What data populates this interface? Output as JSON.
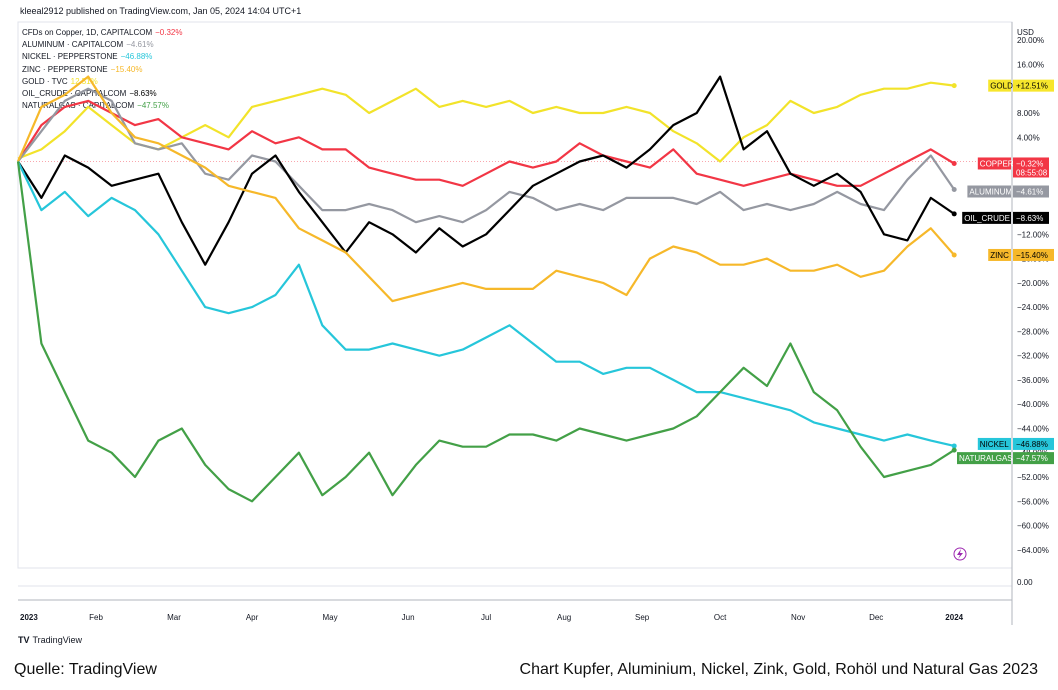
{
  "header": "kleeal2912 published on TradingView.com, Jan 05, 2024 14:04 UTC+1",
  "legend": [
    {
      "name": "CFDs on Copper, 1D, CAPITALCOM",
      "change": "−0.32%",
      "color": "#f23645"
    },
    {
      "name": "ALUMINUM · CAPITALCOM",
      "change": "−4.61%",
      "color": "#9598a1"
    },
    {
      "name": "NICKEL · PEPPERSTONE",
      "change": "−46.88%",
      "color": "#26c6da"
    },
    {
      "name": "ZINC · PEPPERSTONE",
      "change": "−15.40%",
      "color": "#f6b82a"
    },
    {
      "name": "GOLD · TVC",
      "change": "12.51%",
      "color": "#f2e32a"
    },
    {
      "name": "OIL_CRUDE · CAPITALCOM",
      "change": "−8.63%",
      "color": "#000000"
    },
    {
      "name": "NATURALGAS · CAPITALCOM",
      "change": "−47.57%",
      "color": "#43a047"
    }
  ],
  "price_labels": [
    {
      "name": "GOLD",
      "value": "+12.51%",
      "bg": "#f7e62c",
      "fg": "#000000"
    },
    {
      "name": "COPPER",
      "value": "−0.32%",
      "time": "08:55:08",
      "bg": "#f23645",
      "fg": "#ffffff"
    },
    {
      "name": "ALUMINUM",
      "value": "−4.61%",
      "bg": "#9598a1",
      "fg": "#ffffff"
    },
    {
      "name": "OIL_CRUDE",
      "value": "−8.63%",
      "bg": "#000000",
      "fg": "#ffffff"
    },
    {
      "name": "ZINC",
      "value": "−15.40%",
      "bg": "#f6b82a",
      "fg": "#000000"
    },
    {
      "name": "NICKEL",
      "value": "−46.88%",
      "bg": "#26c6da",
      "fg": "#000000"
    },
    {
      "name": "NATURALGAS",
      "value": "−47.57%",
      "bg": "#43a047",
      "fg": "#ffffff"
    }
  ],
  "tv_logo": "TradingView",
  "caption_left": "Quelle: TradingView",
  "caption_right": "Chart Kupfer, Aluminium, Nickel, Zink, Gold, Rohöl und Natural Gas 2023",
  "chart_data": {
    "type": "line",
    "currency_label": "USD",
    "y_unit": "percent change",
    "y_ticks": [
      20,
      16,
      12,
      8,
      4,
      0,
      -4,
      -8,
      -12,
      -16,
      -20,
      -24,
      -28,
      -32,
      -36,
      -40,
      -44,
      -48,
      -52,
      -56,
      -60,
      -64
    ],
    "y_tick_labels": [
      "20.00%",
      "16.00%",
      "12.00%",
      "8.00%",
      "4.00%",
      "",
      "",
      "",
      "−12.00%",
      "−16.00%",
      "−20.00%",
      "−24.00%",
      "−28.00%",
      "−32.00%",
      "−36.00%",
      "−40.00%",
      "−44.00%",
      "−48.00%",
      "−52.00%",
      "−56.00%",
      "−60.00%",
      "−64.00%"
    ],
    "ylim": [
      -67,
      23
    ],
    "pane2_label": "0.00",
    "x_ticks": [
      {
        "label": "2023",
        "x": 0
      },
      {
        "label": "Feb",
        "x": 1
      },
      {
        "label": "Mar",
        "x": 2
      },
      {
        "label": "Apr",
        "x": 3
      },
      {
        "label": "May",
        "x": 4
      },
      {
        "label": "Jun",
        "x": 5
      },
      {
        "label": "Jul",
        "x": 6
      },
      {
        "label": "Aug",
        "x": 7
      },
      {
        "label": "Sep",
        "x": 8
      },
      {
        "label": "Oct",
        "x": 9
      },
      {
        "label": "Nov",
        "x": 10
      },
      {
        "label": "Dec",
        "x": 11
      },
      {
        "label": "2024",
        "x": 12
      }
    ],
    "x_unit": "months since Jan 2023",
    "xlim": [
      0,
      12.1
    ],
    "series": [
      {
        "name": "GOLD",
        "color": "#f2e32a",
        "x": [
          0,
          0.3,
          0.6,
          0.9,
          1.2,
          1.5,
          1.8,
          2.1,
          2.4,
          2.7,
          3.0,
          3.3,
          3.6,
          3.9,
          4.2,
          4.5,
          4.8,
          5.1,
          5.4,
          5.7,
          6.0,
          6.3,
          6.6,
          6.9,
          7.2,
          7.5,
          7.8,
          8.1,
          8.4,
          8.7,
          9.0,
          9.3,
          9.6,
          9.9,
          10.2,
          10.5,
          10.8,
          11.1,
          11.4,
          11.7,
          12.0
        ],
        "values": [
          0.5,
          2,
          5,
          9,
          6,
          3,
          2,
          4,
          6,
          4,
          9,
          10,
          11,
          12,
          11,
          8,
          10,
          12,
          9,
          10,
          9,
          10,
          8,
          9,
          8,
          8,
          9,
          8,
          5,
          3,
          0,
          4,
          6,
          10,
          8,
          9,
          11,
          12,
          12,
          13,
          12.51
        ]
      },
      {
        "name": "COPPER",
        "color": "#f23645",
        "x": [
          0,
          0.3,
          0.6,
          0.9,
          1.2,
          1.5,
          1.8,
          2.1,
          2.4,
          2.7,
          3.0,
          3.3,
          3.6,
          3.9,
          4.2,
          4.5,
          4.8,
          5.1,
          5.4,
          5.7,
          6.0,
          6.3,
          6.6,
          6.9,
          7.2,
          7.5,
          7.8,
          8.1,
          8.4,
          8.7,
          9.0,
          9.3,
          9.6,
          9.9,
          10.2,
          10.5,
          10.8,
          11.1,
          11.4,
          11.7,
          12.0
        ],
        "values": [
          0,
          6,
          9,
          10,
          8,
          6,
          7,
          4,
          3,
          2,
          5,
          3,
          4,
          2,
          2,
          -1,
          -2,
          -3,
          -3,
          -4,
          -2,
          0,
          -1,
          0,
          3,
          1,
          0,
          -1,
          2,
          -2,
          -3,
          -4,
          -3,
          -2,
          -3,
          -4,
          -4,
          -2,
          0,
          2,
          -0.32
        ]
      },
      {
        "name": "ALUMINUM",
        "color": "#9598a1",
        "x": [
          0,
          0.3,
          0.6,
          0.9,
          1.2,
          1.5,
          1.8,
          2.1,
          2.4,
          2.7,
          3.0,
          3.3,
          3.6,
          3.9,
          4.2,
          4.5,
          4.8,
          5.1,
          5.4,
          5.7,
          6.0,
          6.3,
          6.6,
          6.9,
          7.2,
          7.5,
          7.8,
          8.1,
          8.4,
          8.7,
          9.0,
          9.3,
          9.6,
          9.9,
          10.2,
          10.5,
          10.8,
          11.1,
          11.4,
          11.7,
          12.0
        ],
        "values": [
          0,
          5,
          10,
          12,
          10,
          3,
          2,
          3,
          -2,
          -3,
          1,
          0,
          -4,
          -8,
          -8,
          -7,
          -8,
          -10,
          -9,
          -10,
          -8,
          -5,
          -6,
          -8,
          -7,
          -8,
          -6,
          -6,
          -6,
          -7,
          -5,
          -8,
          -7,
          -8,
          -7,
          -5,
          -7,
          -8,
          -3,
          1,
          -4.61
        ]
      },
      {
        "name": "OIL_CRUDE",
        "color": "#000000",
        "x": [
          0,
          0.3,
          0.6,
          0.9,
          1.2,
          1.5,
          1.8,
          2.1,
          2.4,
          2.7,
          3.0,
          3.3,
          3.6,
          3.9,
          4.2,
          4.5,
          4.8,
          5.1,
          5.4,
          5.7,
          6.0,
          6.3,
          6.6,
          6.9,
          7.2,
          7.5,
          7.8,
          8.1,
          8.4,
          8.7,
          9.0,
          9.3,
          9.6,
          9.9,
          10.2,
          10.5,
          10.8,
          11.1,
          11.4,
          11.7,
          12.0
        ],
        "values": [
          0,
          -6,
          1,
          -1,
          -4,
          -3,
          -2,
          -10,
          -17,
          -10,
          -2,
          1,
          -5,
          -10,
          -15,
          -10,
          -12,
          -15,
          -11,
          -14,
          -12,
          -8,
          -4,
          -2,
          0,
          1,
          -1,
          2,
          6,
          8,
          14,
          2,
          5,
          -2,
          -4,
          -2,
          -5,
          -12,
          -13,
          -6,
          -8.63
        ]
      },
      {
        "name": "ZINC",
        "color": "#f6b82a",
        "x": [
          0,
          0.3,
          0.6,
          0.9,
          1.2,
          1.5,
          1.8,
          2.1,
          2.4,
          2.7,
          3.0,
          3.3,
          3.6,
          3.9,
          4.2,
          4.5,
          4.8,
          5.1,
          5.4,
          5.7,
          6.0,
          6.3,
          6.6,
          6.9,
          7.2,
          7.5,
          7.8,
          8.1,
          8.4,
          8.7,
          9.0,
          9.3,
          9.6,
          9.9,
          10.2,
          10.5,
          10.8,
          11.1,
          11.4,
          11.7,
          12.0
        ],
        "values": [
          0,
          9,
          11,
          14,
          8,
          4,
          3,
          1,
          -1,
          -4,
          -5,
          -6,
          -11,
          -13,
          -15,
          -19,
          -23,
          -22,
          -21,
          -20,
          -21,
          -21,
          -21,
          -18,
          -19,
          -20,
          -22,
          -16,
          -14,
          -15,
          -17,
          -17,
          -16,
          -18,
          -18,
          -17,
          -19,
          -18,
          -14,
          -11,
          -15.4
        ]
      },
      {
        "name": "NICKEL",
        "color": "#26c6da",
        "x": [
          0,
          0.3,
          0.6,
          0.9,
          1.2,
          1.5,
          1.8,
          2.1,
          2.4,
          2.7,
          3.0,
          3.3,
          3.6,
          3.9,
          4.2,
          4.5,
          4.8,
          5.1,
          5.4,
          5.7,
          6.0,
          6.3,
          6.6,
          6.9,
          7.2,
          7.5,
          7.8,
          8.1,
          8.4,
          8.7,
          9.0,
          9.3,
          9.6,
          9.9,
          10.2,
          10.5,
          10.8,
          11.1,
          11.4,
          11.7,
          12.0
        ],
        "values": [
          0,
          -8,
          -5,
          -9,
          -6,
          -8,
          -12,
          -18,
          -24,
          -25,
          -24,
          -22,
          -17,
          -27,
          -31,
          -31,
          -30,
          -31,
          -32,
          -31,
          -29,
          -27,
          -30,
          -33,
          -33,
          -35,
          -34,
          -34,
          -36,
          -38,
          -38,
          -39,
          -40,
          -41,
          -43,
          -44,
          -45,
          -46,
          -45,
          -46,
          -46.88
        ]
      },
      {
        "name": "NATURALGAS",
        "color": "#43a047",
        "x": [
          0,
          0.3,
          0.6,
          0.9,
          1.2,
          1.5,
          1.8,
          2.1,
          2.4,
          2.7,
          3.0,
          3.3,
          3.6,
          3.9,
          4.2,
          4.5,
          4.8,
          5.1,
          5.4,
          5.7,
          6.0,
          6.3,
          6.6,
          6.9,
          7.2,
          7.5,
          7.8,
          8.1,
          8.4,
          8.7,
          9.0,
          9.3,
          9.6,
          9.9,
          10.2,
          10.5,
          10.8,
          11.1,
          11.4,
          11.7,
          12.0
        ],
        "values": [
          0,
          -30,
          -38,
          -46,
          -48,
          -52,
          -46,
          -44,
          -50,
          -54,
          -56,
          -52,
          -48,
          -55,
          -52,
          -48,
          -55,
          -50,
          -46,
          -47,
          -47,
          -45,
          -45,
          -46,
          -44,
          -45,
          -46,
          -45,
          -44,
          -42,
          -38,
          -34,
          -37,
          -30,
          -38,
          -41,
          -47,
          -52,
          -51,
          -50,
          -47.57
        ]
      }
    ]
  }
}
